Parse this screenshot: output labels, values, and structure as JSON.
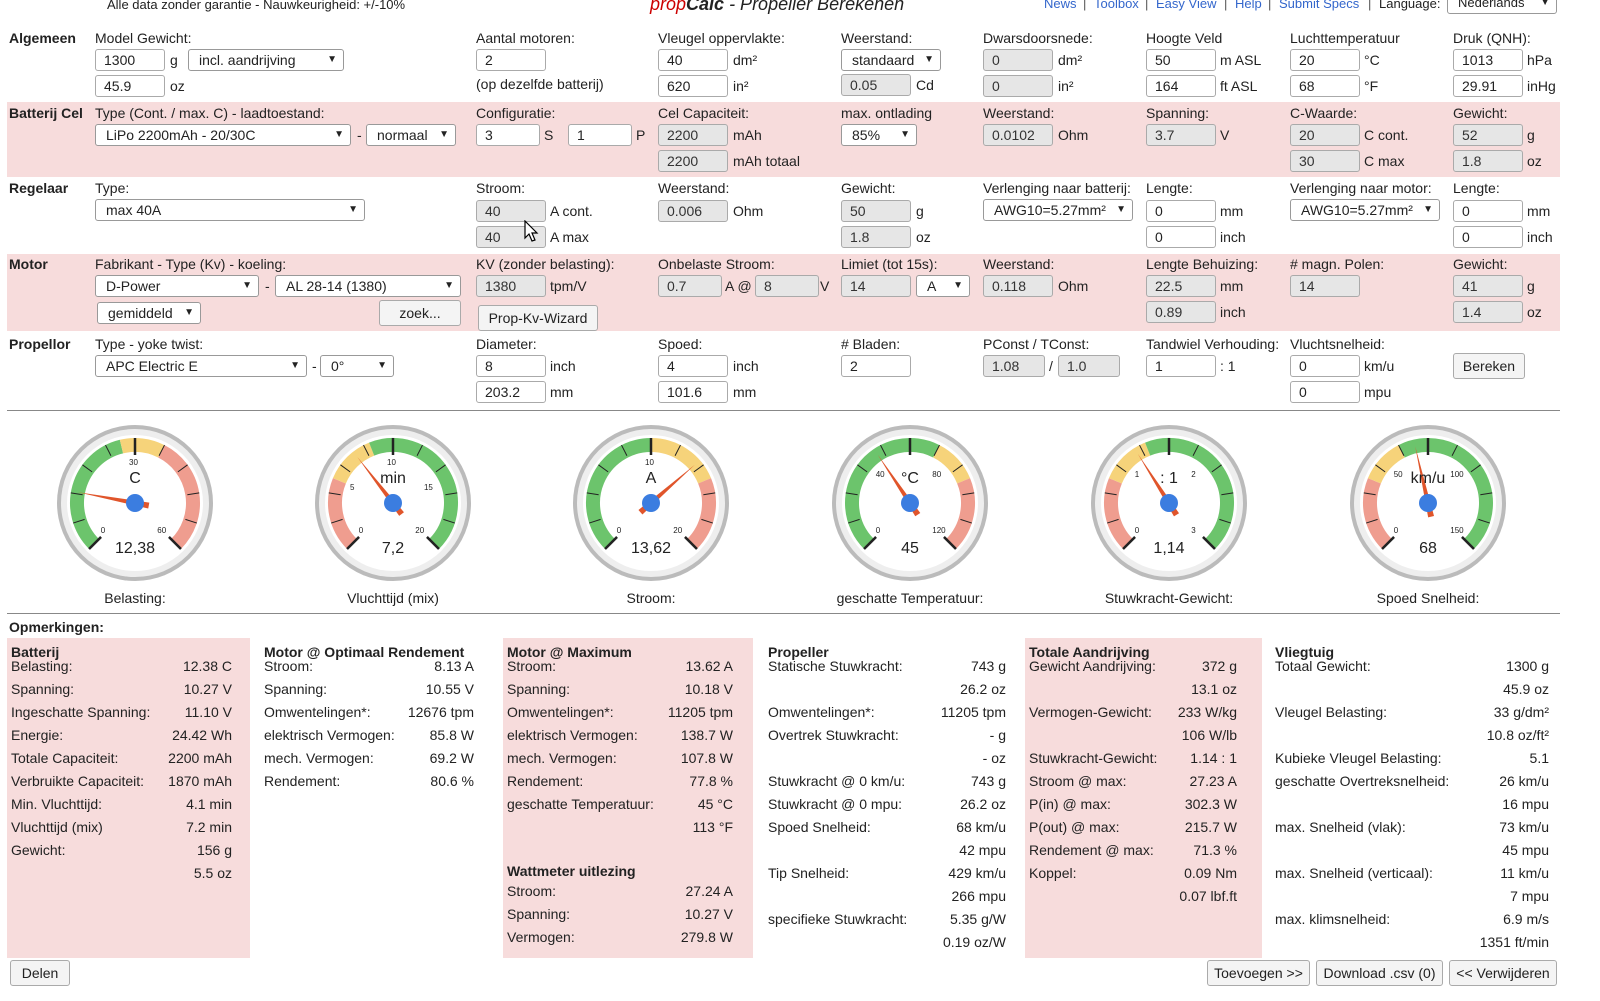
{
  "header": {
    "disclaimer": "Alle data zonder garantie - Nauwkeurigheid: +/-10%",
    "title_brand_1": "prop",
    "title_brand_2": "Calc",
    "title_rest": " - Propeller Berekenen",
    "links": [
      "News",
      "Toolbox",
      "Easy View",
      "Help",
      "Submit Specs"
    ],
    "language_label": "Language:",
    "language_value": "Nederlands"
  },
  "algemeen": {
    "label": "Algemeen",
    "model_gewicht_label": "Model Gewicht:",
    "model_gewicht_g": "1300",
    "unit_g": "g",
    "model_gewicht_oz": "45.9",
    "unit_oz": "oz",
    "aandrijving": "incl. aandrijving",
    "aantal_motoren_label": "Aantal motoren:",
    "aantal_motoren": "2",
    "aantal_motoren_note": "(op dezelfde batterij)",
    "vleugel_label": "Vleugel oppervlakte:",
    "vleugel_dm2": "40",
    "unit_dm2": "dm²",
    "vleugel_in2": "620",
    "unit_in2": "in²",
    "weerstand_label": "Weerstand:",
    "weerstand_sel": "standaard",
    "weerstand_cd": "0.05",
    "unit_cd": "Cd",
    "dwars_label": "Dwarsdoorsnede:",
    "dwars_dm2": "0",
    "dwars_in2": "0",
    "hoogte_label": "Hoogte Veld",
    "hoogte_m": "50",
    "unit_masl": "m ASL",
    "hoogte_ft": "164",
    "unit_ftasl": "ft ASL",
    "lucht_label": "Luchttemperatuur",
    "lucht_c": "20",
    "unit_c": "°C",
    "lucht_f": "68",
    "unit_f": "°F",
    "druk_label": "Druk (QNH):",
    "druk_hpa": "1013",
    "unit_hpa": "hPa",
    "druk_inhg": "29.91",
    "unit_inhg": "inHg"
  },
  "batterij": {
    "label": "Batterij Cel",
    "type_label": "Type (Cont. / max. C) - laadtoestand:",
    "type": "LiPo 2200mAh - 20/30C",
    "dash": "-",
    "toestand": "normaal",
    "config_label": "Configuratie:",
    "s": "3",
    "unit_s": "S",
    "p": "1",
    "unit_p": "P",
    "cap_label": "Cel Capaciteit:",
    "cap": "2200",
    "unit_mah": "mAh",
    "cap_tot": "2200",
    "unit_mahtot": "mAh totaal",
    "ontlading_label": "max. ontlading",
    "ontlading": "85%",
    "weerstand_label": "Weerstand:",
    "weerstand": "0.0102",
    "unit_ohm": "Ohm",
    "spanning_label": "Spanning:",
    "spanning": "3.7",
    "unit_v": "V",
    "c_label": "C-Waarde:",
    "c_cont": "20",
    "unit_ccont": "C cont.",
    "c_max": "30",
    "unit_cmax": "C max",
    "gewicht_label": "Gewicht:",
    "gewicht_g": "52",
    "gewicht_oz": "1.8"
  },
  "regelaar": {
    "label": "Regelaar",
    "type_label": "Type:",
    "type": "max 40A",
    "stroom_label": "Stroom:",
    "stroom_cont": "40",
    "unit_acont": "A cont.",
    "stroom_max": "40",
    "unit_amax": "A max",
    "weerstand_label": "Weerstand:",
    "weerstand": "0.006",
    "unit_ohm": "Ohm",
    "gewicht_label": "Gewicht:",
    "gewicht_g": "50",
    "gewicht_oz": "1.8",
    "verl_bat_label": "Verlenging naar batterij:",
    "verl_bat": "AWG10=5.27mm²",
    "lengte_label": "Lengte:",
    "lengte_bat_mm": "0",
    "unit_mm": "mm",
    "lengte_bat_in": "0",
    "unit_inch": "inch",
    "verl_mot_label": "Verlenging naar motor:",
    "verl_mot": "AWG10=5.27mm²",
    "lengte_mot_mm": "0",
    "lengte_mot_in": "0"
  },
  "motor": {
    "label": "Motor",
    "fab_label": "Fabrikant - Type (Kv) - koeling:",
    "fabrikant": "D-Power",
    "type": "AL 28-14 (1380)",
    "koeling": "gemiddeld",
    "zoek": "zoek...",
    "kv_label": "KV (zonder belasting):",
    "kv": "1380",
    "unit_tpm": "tpm/V",
    "wizard": "Prop-Kv-Wizard",
    "onb_label": "Onbelaste Stroom:",
    "onb_a": "0.7",
    "unit_a_at": "A @",
    "onb_v": "8",
    "unit_v": "V",
    "limiet_label": "Limiet (tot 15s):",
    "limiet": "14",
    "limiet_unit": "A",
    "weerstand_label": "Weerstand:",
    "weerstand": "0.118",
    "unit_ohm": "Ohm",
    "lengte_label": "Lengte Behuizing:",
    "lengte_mm": "22.5",
    "lengte_in": "0.89",
    "polen_label": "# magn. Polen:",
    "polen": "14",
    "gewicht_label": "Gewicht:",
    "gewicht_g": "41",
    "gewicht_oz": "1.4"
  },
  "propellor": {
    "label": "Propellor",
    "type_label": "Type - yoke twist:",
    "type": "APC Electric E",
    "twist": "0°",
    "diam_label": "Diameter:",
    "diam_in": "8",
    "diam_mm": "203.2",
    "spoed_label": "Spoed:",
    "spoed_in": "4",
    "spoed_mm": "101.6",
    "bladen_label": "# Bladen:",
    "bladen": "2",
    "pconst_label": "PConst / TConst:",
    "pconst": "1.08",
    "slash": "/",
    "tconst": "1.0",
    "tandwiel_label": "Tandwiel Verhouding:",
    "tandwiel": "1",
    "tandwiel_suffix": ": 1",
    "vlucht_label": "Vluchtsnelheid:",
    "vlucht_kmu": "0",
    "unit_kmu": "km/u",
    "vlucht_mpu": "0",
    "unit_mpu": "mpu",
    "bereken": "Bereken"
  },
  "gauges": [
    {
      "unit": "C",
      "t0": "0",
      "t1": "30",
      "t2": "60",
      "value": "12,38",
      "label": "Belasting:",
      "level": 0.206
    },
    {
      "unit": "min",
      "t0": "0",
      "t1": "5",
      "t2": "10",
      "t3": "15",
      "t4": "20",
      "value": "7,2",
      "label": "Vluchttijd (mix)",
      "level": 0.36
    },
    {
      "unit": "A",
      "t0": "0",
      "t1": "10",
      "t2": "20",
      "value": "13,62",
      "label": "Stroom:",
      "level": 0.681
    },
    {
      "unit": "°C",
      "t0": "0",
      "t1": "40",
      "t2": "80",
      "t3": "120",
      "value": "45",
      "label": "geschatte Temperatuur:",
      "level": 0.375
    },
    {
      "unit": ": 1",
      "t0": "0",
      "t1": "1",
      "t2": "2",
      "t3": "3",
      "value": "1,14",
      "label": "Stuwkracht-Gewicht:",
      "level": 0.38
    },
    {
      "unit": "km/u",
      "t0": "0",
      "t1": "50",
      "t2": "100",
      "t3": "150",
      "value": "68",
      "label": "Spoed Snelheid:",
      "level": 0.453
    }
  ],
  "opmerkingen": "Opmerkingen:",
  "results": {
    "batterij": {
      "title": "Batterij",
      "rows": [
        [
          "Belasting:",
          "12.38 C"
        ],
        [
          "Spanning:",
          "10.27 V"
        ],
        [
          "Ingeschatte Spanning:",
          "11.10 V"
        ],
        [
          "Energie:",
          "24.42 Wh"
        ],
        [
          "Totale Capaciteit:",
          "2200 mAh"
        ],
        [
          "Verbruikte Capaciteit:",
          "1870 mAh"
        ],
        [
          "Min. Vluchttijd:",
          "4.1 min"
        ],
        [
          "Vluchttijd (mix)",
          "7.2 min"
        ],
        [
          "Gewicht:",
          "156 g"
        ],
        [
          "",
          "5.5 oz"
        ]
      ]
    },
    "motor_opt": {
      "title": "Motor @ Optimaal Rendement",
      "rows": [
        [
          "Stroom:",
          "8.13 A"
        ],
        [
          "Spanning:",
          "10.55 V"
        ],
        [
          "Omwentelingen*:",
          "12676 tpm"
        ],
        [
          "elektrisch Vermogen:",
          "85.8 W"
        ],
        [
          "mech. Vermogen:",
          "69.2 W"
        ],
        [
          "Rendement:",
          "80.6 %"
        ]
      ]
    },
    "motor_max": {
      "title": "Motor @ Maximum",
      "rows": [
        [
          "Stroom:",
          "13.62 A"
        ],
        [
          "Spanning:",
          "10.18 V"
        ],
        [
          "Omwentelingen*:",
          "11205 tpm"
        ],
        [
          "elektrisch Vermogen:",
          "138.7 W"
        ],
        [
          "mech. Vermogen:",
          "107.8 W"
        ],
        [
          "Rendement:",
          "77.8 %"
        ],
        [
          "geschatte Temperatuur:",
          "45 °C"
        ],
        [
          "",
          "113 °F"
        ]
      ],
      "watt_title": "Wattmeter uitlezing",
      "watt_rows": [
        [
          "Stroom:",
          "27.24 A"
        ],
        [
          "Spanning:",
          "10.27 V"
        ],
        [
          "Vermogen:",
          "279.8 W"
        ]
      ]
    },
    "propeller": {
      "title": "Propeller",
      "rows": [
        [
          "Statische Stuwkracht:",
          "743 g"
        ],
        [
          "",
          "26.2 oz"
        ],
        [
          "Omwentelingen*:",
          "11205 tpm"
        ],
        [
          "Overtrek Stuwkracht:",
          "- g"
        ],
        [
          "",
          "- oz"
        ],
        [
          "Stuwkracht @ 0 km/u:",
          "743 g"
        ],
        [
          "Stuwkracht @ 0 mpu:",
          "26.2 oz"
        ],
        [
          "Spoed Snelheid:",
          "68 km/u"
        ],
        [
          "",
          "42 mpu"
        ],
        [
          "Tip Snelheid:",
          "429 km/u"
        ],
        [
          "",
          "266 mpu"
        ],
        [
          "specifieke Stuwkracht:",
          "5.35 g/W"
        ],
        [
          "",
          "0.19 oz/W"
        ]
      ]
    },
    "totale": {
      "title": "Totale Aandrijving",
      "rows": [
        [
          "Gewicht Aandrijving:",
          "372 g"
        ],
        [
          "",
          "13.1 oz"
        ],
        [
          "Vermogen-Gewicht:",
          "233 W/kg"
        ],
        [
          "",
          "106 W/lb"
        ],
        [
          "Stuwkracht-Gewicht:",
          "1.14 : 1"
        ],
        [
          "Stroom @ max:",
          "27.23 A"
        ],
        [
          "P(in) @ max:",
          "302.3 W"
        ],
        [
          "P(out) @ max:",
          "215.7 W"
        ],
        [
          "Rendement @ max:",
          "71.3 %"
        ],
        [
          "Koppel:",
          "0.09 Nm"
        ],
        [
          "",
          "0.07 lbf.ft"
        ]
      ]
    },
    "vliegtuig": {
      "title": "Vliegtuig",
      "rows": [
        [
          "Totaal Gewicht:",
          "1300 g"
        ],
        [
          "",
          "45.9 oz"
        ],
        [
          "Vleugel Belasting:",
          "33 g/dm²"
        ],
        [
          "",
          "10.8 oz/ft²"
        ],
        [
          "Kubieke Vleugel Belasting:",
          "5.1"
        ],
        [
          "geschatte Overtreksnelheid:",
          "26 km/u"
        ],
        [
          "",
          "16 mpu"
        ],
        [
          "max. Snelheid (vlak):",
          "73 km/u"
        ],
        [
          "",
          "45 mpu"
        ],
        [
          "max. Snelheid (verticaal):",
          "11 km/u"
        ],
        [
          "",
          "7 mpu"
        ],
        [
          "max. klimsnelheid:",
          "6.9 m/s"
        ],
        [
          "",
          "1351 ft/min"
        ]
      ]
    }
  },
  "footer": {
    "delen": "Delen",
    "toevoegen": "Toevoegen >>",
    "download": "Download .csv (0)",
    "verwijderen": "<< Verwijderen"
  },
  "colors": {
    "band": "#f7dcdc",
    "green": "#6cc46c",
    "yellow": "#f6d37a",
    "red": "#ef9d8f",
    "needle": "#e0552b",
    "hub": "#3b7de0",
    "brand_red": "#cc0000"
  }
}
